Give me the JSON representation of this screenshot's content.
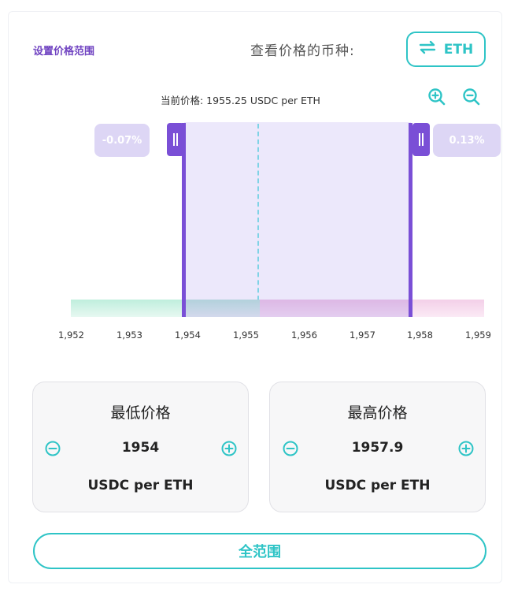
{
  "header": {
    "title": "设置价格范围",
    "view_label": "查看价格的币种:",
    "token_toggle": "ETH"
  },
  "chart": {
    "current_price_text": "当前价格: 1955.25 USDC per ETH",
    "lower_percent": "-0.07%",
    "upper_percent": "0.13%",
    "ticks": [
      "1,952",
      "1,953",
      "1,954",
      "1,955",
      "1,956",
      "1,957",
      "1,958",
      "1,959"
    ]
  },
  "min_panel": {
    "title": "最低价格",
    "value": "1954",
    "unit": "USDC per ETH"
  },
  "max_panel": {
    "title": "最高价格",
    "value": "1957.9",
    "unit": "USDC per ETH"
  },
  "full_range_label": "全范围",
  "colors": {
    "accent": "#2ec4c6",
    "purple": "#7a4fd6",
    "title_purple": "#6f42c1",
    "range_band": "#ece8fb"
  },
  "icons": [
    "swap-arrows-icon",
    "zoom-in-icon",
    "zoom-out-icon",
    "minus-circle-icon",
    "plus-circle-icon"
  ]
}
